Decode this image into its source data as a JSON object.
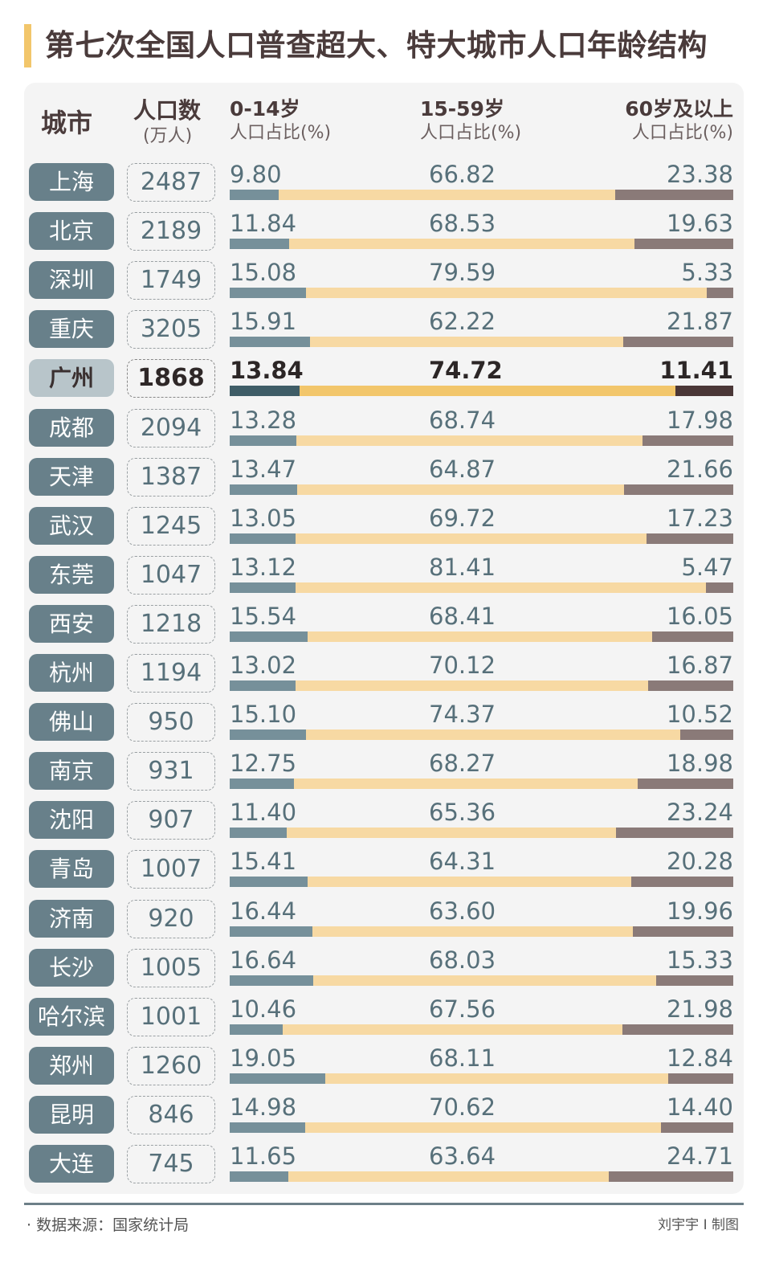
{
  "title": "第七次全国人口普查超大、特大城市人口年龄结构",
  "headers": {
    "city": "城市",
    "population": "人口数",
    "population_unit": "(万人)",
    "age1": "0-14岁",
    "age2": "15-59岁",
    "age3": "60岁及以上",
    "share_unit": "人口占比(%)"
  },
  "colors": {
    "age1": "#76909a",
    "age2": "#f7d9a3",
    "age3": "#8a7a78",
    "highlight_age1": "#3f5d67",
    "highlight_age2": "#f2c66b",
    "highlight_age3": "#4a3636"
  },
  "chart_data": {
    "type": "bar",
    "orientation": "horizontal-stacked-100",
    "title": "第七次全国人口普查超大、特大城市人口年龄结构",
    "series_names": [
      "0-14岁",
      "15-59岁",
      "60岁及以上"
    ],
    "highlight": "广州",
    "rows": [
      {
        "city": "上海",
        "population": "2487",
        "age1": "9.80",
        "age2": "66.82",
        "age3": "23.38"
      },
      {
        "city": "北京",
        "population": "2189",
        "age1": "11.84",
        "age2": "68.53",
        "age3": "19.63"
      },
      {
        "city": "深圳",
        "population": "1749",
        "age1": "15.08",
        "age2": "79.59",
        "age3": "5.33"
      },
      {
        "city": "重庆",
        "population": "3205",
        "age1": "15.91",
        "age2": "62.22",
        "age3": "21.87"
      },
      {
        "city": "广州",
        "population": "1868",
        "age1": "13.84",
        "age2": "74.72",
        "age3": "11.41"
      },
      {
        "city": "成都",
        "population": "2094",
        "age1": "13.28",
        "age2": "68.74",
        "age3": "17.98"
      },
      {
        "city": "天津",
        "population": "1387",
        "age1": "13.47",
        "age2": "64.87",
        "age3": "21.66"
      },
      {
        "city": "武汉",
        "population": "1245",
        "age1": "13.05",
        "age2": "69.72",
        "age3": "17.23"
      },
      {
        "city": "东莞",
        "population": "1047",
        "age1": "13.12",
        "age2": "81.41",
        "age3": "5.47"
      },
      {
        "city": "西安",
        "population": "1218",
        "age1": "15.54",
        "age2": "68.41",
        "age3": "16.05"
      },
      {
        "city": "杭州",
        "population": "1194",
        "age1": "13.02",
        "age2": "70.12",
        "age3": "16.87"
      },
      {
        "city": "佛山",
        "population": "950",
        "age1": "15.10",
        "age2": "74.37",
        "age3": "10.52"
      },
      {
        "city": "南京",
        "population": "931",
        "age1": "12.75",
        "age2": "68.27",
        "age3": "18.98"
      },
      {
        "city": "沈阳",
        "population": "907",
        "age1": "11.40",
        "age2": "65.36",
        "age3": "23.24"
      },
      {
        "city": "青岛",
        "population": "1007",
        "age1": "15.41",
        "age2": "64.31",
        "age3": "20.28"
      },
      {
        "city": "济南",
        "population": "920",
        "age1": "16.44",
        "age2": "63.60",
        "age3": "19.96"
      },
      {
        "city": "长沙",
        "population": "1005",
        "age1": "16.64",
        "age2": "68.03",
        "age3": "15.33"
      },
      {
        "city": "哈尔滨",
        "population": "1001",
        "age1": "10.46",
        "age2": "67.56",
        "age3": "21.98"
      },
      {
        "city": "郑州",
        "population": "1260",
        "age1": "19.05",
        "age2": "68.11",
        "age3": "12.84"
      },
      {
        "city": "昆明",
        "population": "846",
        "age1": "14.98",
        "age2": "70.62",
        "age3": "14.40"
      },
      {
        "city": "大连",
        "population": "745",
        "age1": "11.65",
        "age2": "63.64",
        "age3": "24.71"
      }
    ]
  },
  "footer": {
    "source": "· 数据来源：国家统计局",
    "credit": "刘宇宇 I 制图"
  }
}
